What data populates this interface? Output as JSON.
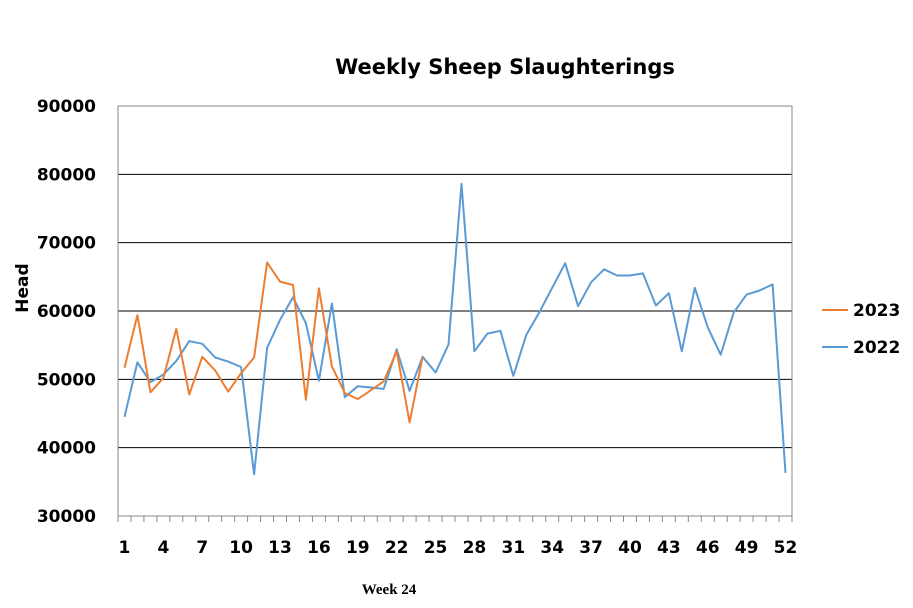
{
  "chart_data": {
    "type": "line",
    "title": "Weekly Sheep Slaughterings",
    "xlabel": "Week 24",
    "ylabel": "Head",
    "ylim": [
      30000,
      90000
    ],
    "yticks": [
      30000,
      40000,
      50000,
      60000,
      70000,
      80000,
      90000
    ],
    "xlim": [
      1,
      52
    ],
    "xtick_labels": [
      1,
      4,
      7,
      10,
      13,
      16,
      19,
      22,
      25,
      28,
      31,
      34,
      37,
      40,
      43,
      46,
      49,
      52
    ],
    "grid": "horizontal",
    "legend_position": "right",
    "series": [
      {
        "name": "2023",
        "color": "#ED7D31",
        "x": [
          1,
          2,
          3,
          4,
          5,
          6,
          7,
          8,
          9,
          10,
          11,
          12,
          13,
          14,
          15,
          16,
          17,
          18,
          19,
          20,
          21,
          22,
          23,
          24
        ],
        "values": [
          51700,
          59400,
          48100,
          50200,
          57400,
          47800,
          53300,
          51300,
          48200,
          50900,
          53200,
          67100,
          64300,
          63800,
          47000,
          63300,
          51900,
          48000,
          47100,
          48400,
          49700,
          54100,
          43700,
          53300
        ]
      },
      {
        "name": "2022",
        "color": "#5B9BD5",
        "x": [
          1,
          2,
          3,
          4,
          5,
          6,
          7,
          8,
          9,
          10,
          11,
          12,
          13,
          14,
          15,
          16,
          17,
          18,
          19,
          20,
          21,
          22,
          23,
          24,
          25,
          26,
          27,
          28,
          29,
          30,
          31,
          32,
          33,
          34,
          35,
          36,
          37,
          38,
          39,
          40,
          41,
          42,
          43,
          44,
          45,
          46,
          47,
          48,
          49,
          50,
          51,
          52
        ],
        "values": [
          44500,
          52500,
          49600,
          50700,
          52700,
          55600,
          55200,
          53200,
          52600,
          51800,
          36100,
          54600,
          58700,
          62000,
          58200,
          49800,
          61100,
          47400,
          49000,
          48800,
          48600,
          54400,
          48300,
          53300,
          51000,
          55100,
          78600,
          54100,
          56700,
          57100,
          50500,
          56500,
          59800,
          63400,
          67000,
          60700,
          64200,
          66100,
          65200,
          65200,
          65500,
          60800,
          62600,
          54100,
          63400,
          57600,
          53600,
          59800,
          62400,
          63000,
          63900,
          36300
        ]
      }
    ]
  }
}
